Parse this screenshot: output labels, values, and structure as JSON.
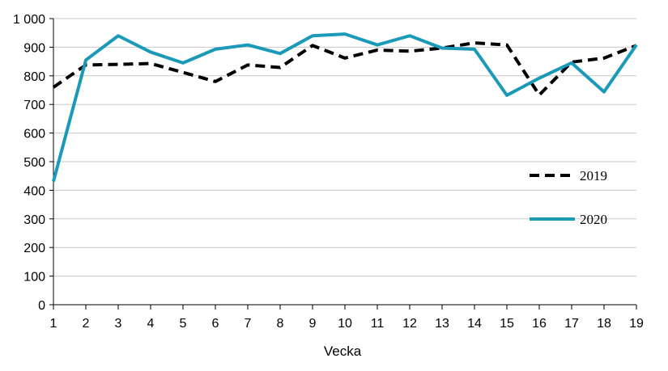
{
  "chart_data": {
    "type": "line",
    "title": "",
    "xlabel": "Vecka",
    "ylabel": "",
    "x": [
      1,
      2,
      3,
      4,
      5,
      6,
      7,
      8,
      9,
      10,
      11,
      12,
      13,
      14,
      15,
      16,
      17,
      18,
      19
    ],
    "x_tick_labels": [
      "1",
      "2",
      "3",
      "4",
      "5",
      "6",
      "7",
      "8",
      "9",
      "10",
      "11",
      "12",
      "13",
      "14",
      "15",
      "16",
      "17",
      "18",
      "19"
    ],
    "ylim": [
      0,
      1000
    ],
    "y_ticks": [
      0,
      100,
      200,
      300,
      400,
      500,
      600,
      700,
      800,
      900,
      1000
    ],
    "y_tick_labels": [
      "0",
      "100",
      "200",
      "300",
      "400",
      "500",
      "600",
      "700",
      "800",
      "900",
      "1 000"
    ],
    "grid": true,
    "legend_position": "right",
    "series": [
      {
        "name": "2019",
        "style": "dashed",
        "color": "#000000",
        "values": [
          760,
          838,
          840,
          843,
          812,
          780,
          838,
          829,
          906,
          862,
          890,
          886,
          897,
          915,
          908,
          733,
          848,
          862,
          906
        ]
      },
      {
        "name": "2020",
        "style": "solid",
        "color": "#1a9ab8",
        "values": [
          431,
          855,
          940,
          883,
          845,
          893,
          908,
          878,
          940,
          946,
          908,
          940,
          897,
          893,
          732,
          792,
          845,
          744,
          908
        ]
      }
    ]
  }
}
